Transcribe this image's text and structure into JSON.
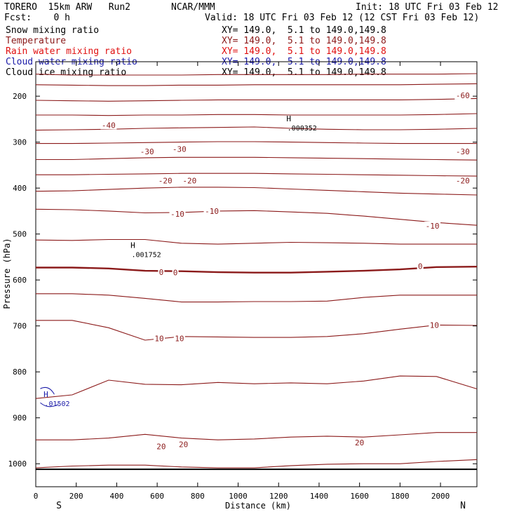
{
  "header": {
    "model": "TORERO  15km ARW   Run2",
    "org": "NCAR/MMM",
    "init": "Init: 18 UTC Fri 03 Feb 12",
    "fcst": "Fcst:    0 h",
    "valid": "Valid: 18 UTC Fri 03 Feb 12 (12 CST Fri 03 Feb 12)"
  },
  "legend": [
    {
      "label": "Snow mixing ratio",
      "range": "",
      "color": "#000000"
    },
    {
      "label": "Temperature",
      "range": "XY= 149.0,  5.1 to 149.0,149.8",
      "color": "#8b1a1a"
    },
    {
      "label": "Rain water mixing ratio",
      "range": "XY= 149.0,  5.1 to 149.0,149.8",
      "color": "#e01010"
    },
    {
      "label": "Cloud water mixing ratio",
      "range": "XY= 149.0,  5.1 to 149.0,149.8",
      "color": "#1a1aa8"
    },
    {
      "label": "Cloud ice mixing ratio",
      "range": "XY= 149.0,  5.1 to 149.0,149.8",
      "color": "#000000"
    }
  ],
  "snow_range": "XY= 149.0,  5.1 to 149.0,149.8",
  "chart_data": {
    "type": "contour-cross-section",
    "xlabel": "Distance (km)",
    "ylabel": "Pressure (hPa)",
    "x_ticks": [
      "0",
      "200",
      "400",
      "600",
      "800",
      "1000",
      "1200",
      "1400",
      "1600",
      "1800",
      "2000"
    ],
    "y_ticks": [
      "200",
      "300",
      "400",
      "500",
      "600",
      "700",
      "800",
      "900",
      "1000"
    ],
    "xlim": [
      0,
      2180
    ],
    "ylim": [
      1050,
      125
    ],
    "y_scale": "linear",
    "end_labels": {
      "left": "S",
      "right": "N"
    },
    "temperature_contour_labels": [
      {
        "text": "-60",
        "x": 2110,
        "p": 198
      },
      {
        "text": "-40",
        "x": 360,
        "p": 263
      },
      {
        "text": "-30",
        "x": 550,
        "p": 320
      },
      {
        "text": "-30",
        "x": 710,
        "p": 315
      },
      {
        "text": "-30",
        "x": 2110,
        "p": 320
      },
      {
        "text": "-20",
        "x": 640,
        "p": 384
      },
      {
        "text": "-20",
        "x": 760,
        "p": 384
      },
      {
        "text": "-20",
        "x": 2110,
        "p": 384
      },
      {
        "text": "-10",
        "x": 700,
        "p": 456
      },
      {
        "text": "-10",
        "x": 870,
        "p": 450
      },
      {
        "text": "-10",
        "x": 1960,
        "p": 482
      },
      {
        "text": "0",
        "x": 620,
        "p": 583
      },
      {
        "text": "0",
        "x": 690,
        "p": 584
      },
      {
        "text": "0",
        "x": 1900,
        "p": 570
      },
      {
        "text": "10",
        "x": 610,
        "p": 727
      },
      {
        "text": "10",
        "x": 710,
        "p": 727
      },
      {
        "text": "10",
        "x": 1970,
        "p": 698
      },
      {
        "text": "20",
        "x": 620,
        "p": 962
      },
      {
        "text": "20",
        "x": 730,
        "p": 958
      },
      {
        "text": "20",
        "x": 1600,
        "p": 954
      }
    ],
    "maxima": [
      {
        "symbol": "H",
        "value": ".000352",
        "x": 1250,
        "p": 255,
        "field": "Cloud ice mixing ratio",
        "color": "#000000"
      },
      {
        "symbol": "H",
        "value": ".001752",
        "x": 480,
        "p": 530,
        "field": "Snow mixing ratio",
        "color": "#000000"
      },
      {
        "symbol": "H",
        "value": ".01502",
        "x": 50,
        "p": 855,
        "field": "Cloud water mixing ratio",
        "color": "#1a1aa8"
      }
    ],
    "temperature_isotherms_p": [
      [
        152,
        154,
        154,
        154,
        154,
        153,
        153,
        153,
        153,
        152,
        152,
        152,
        151
      ],
      [
        175,
        176,
        177,
        177,
        176,
        176,
        175,
        175,
        175,
        175,
        175,
        174,
        173
      ],
      [
        209,
        210,
        211,
        210,
        209,
        208,
        208,
        208,
        208,
        208,
        208,
        207,
        205
      ],
      [
        241,
        241,
        242,
        241,
        241,
        240,
        240,
        241,
        241,
        241,
        241,
        240,
        238
      ],
      [
        274,
        273,
        272,
        270,
        269,
        268,
        267,
        270,
        272,
        273,
        273,
        272,
        270
      ],
      [
        303,
        303,
        302,
        301,
        300,
        299,
        299,
        300,
        301,
        302,
        303,
        303,
        303
      ],
      [
        338,
        338,
        336,
        334,
        333,
        333,
        333,
        334,
        335,
        336,
        337,
        338,
        339
      ],
      [
        371,
        371,
        370,
        369,
        368,
        368,
        368,
        369,
        370,
        371,
        372,
        373,
        374
      ],
      [
        407,
        406,
        403,
        400,
        398,
        398,
        399,
        402,
        405,
        408,
        411,
        413,
        415
      ],
      [
        446,
        447,
        450,
        454,
        453,
        450,
        449,
        452,
        455,
        461,
        468,
        475,
        481
      ],
      [
        513,
        514,
        512,
        512,
        520,
        522,
        520,
        518,
        519,
        520,
        522,
        522,
        522
      ],
      [
        573,
        573,
        575,
        580,
        581,
        583,
        584,
        584,
        582,
        580,
        577,
        572,
        571
      ],
      [
        630,
        630,
        633,
        640,
        648,
        648,
        647,
        647,
        646,
        638,
        633,
        633,
        633
      ],
      [
        688,
        688,
        704,
        731,
        723,
        724,
        725,
        725,
        723,
        717,
        707,
        698,
        699
      ],
      [
        858,
        850,
        818,
        827,
        828,
        823,
        826,
        824,
        826,
        820,
        809,
        810,
        837
      ],
      [
        948,
        948,
        944,
        936,
        944,
        948,
        946,
        942,
        940,
        942,
        937,
        932,
        932
      ],
      [
        1009,
        1005,
        1003,
        1003,
        1007,
        1009,
        1009,
        1004,
        1001,
        1000,
        1000,
        995,
        991
      ]
    ],
    "isotherm_x": [
      0,
      180,
      360,
      540,
      720,
      900,
      1080,
      1260,
      1440,
      1620,
      1800,
      1980,
      2180
    ]
  }
}
